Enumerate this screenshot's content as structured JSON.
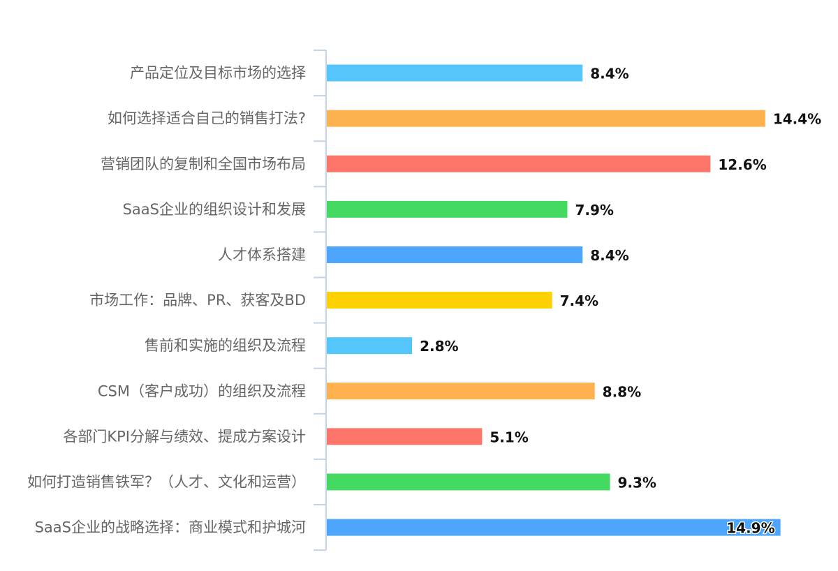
{
  "chart_data": {
    "type": "bar",
    "orientation": "horizontal",
    "title": "",
    "xlabel": "",
    "ylabel": "",
    "xlim": [
      0,
      15
    ],
    "grid": false,
    "legend": "none",
    "categories": [
      "产品定位及目标市场的选择",
      "如何选择适合自己的销售打法?",
      "营销团队的复制和全国市场布局",
      "SaaS企业的组织设计和发展",
      "人才体系搭建",
      "市场工作：品牌、PR、获客及BD",
      "售前和实施的组织及流程",
      "CSM（客户成功）的组织及流程",
      "各部门KPI分解与绩效、提成方案设计",
      "如何打造销售铁军？（人才、文化和运营）",
      "SaaS企业的战略选择：商业模式和护城河"
    ],
    "values": [
      8.4,
      14.4,
      12.6,
      7.9,
      8.4,
      7.4,
      2.8,
      8.8,
      5.1,
      9.3,
      14.9
    ],
    "value_labels": [
      "8.4%",
      "14.4%",
      "12.6%",
      "7.9%",
      "8.4%",
      "7.4%",
      "2.8%",
      "8.8%",
      "5.1%",
      "9.3%",
      "14.9%"
    ],
    "colors": [
      "#55c6fc",
      "#fdb24f",
      "#fe766a",
      "#44d961",
      "#4ea6fc",
      "#fed200",
      "#55c6fc",
      "#fdb24f",
      "#fe766a",
      "#44d961",
      "#4ea6fc"
    ],
    "axis_color": "#c5d3e6"
  }
}
